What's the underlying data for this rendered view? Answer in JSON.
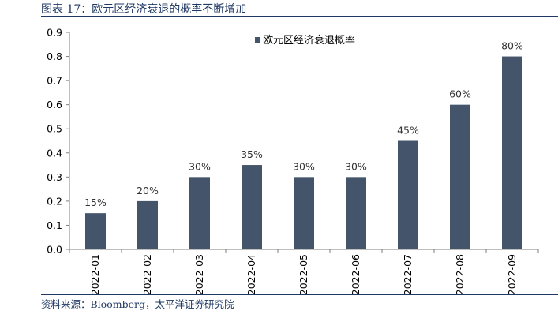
{
  "figure": {
    "title": "图表 17：欧元区经济衰退的概率不断增加",
    "source": "资料来源：Bloomberg，太平洋证券研究院"
  },
  "chart_data": {
    "type": "bar",
    "categories": [
      "2022-01",
      "2022-02",
      "2022-03",
      "2022-04",
      "2022-05",
      "2022-06",
      "2022-07",
      "2022-08",
      "2022-09"
    ],
    "series": [
      {
        "name": "欧元区经济衰退概率",
        "values": [
          0.15,
          0.2,
          0.3,
          0.35,
          0.3,
          0.3,
          0.45,
          0.6,
          0.8
        ],
        "labels": [
          "15%",
          "20%",
          "30%",
          "35%",
          "30%",
          "30%",
          "45%",
          "60%",
          "80%"
        ],
        "color": "#44546a"
      }
    ],
    "y_ticks": [
      "0.0",
      "0.1",
      "0.2",
      "0.3",
      "0.4",
      "0.5",
      "0.6",
      "0.7",
      "0.8",
      "0.9"
    ],
    "ylim": [
      0,
      0.9
    ],
    "grid": false,
    "legend_position": "top-center"
  }
}
